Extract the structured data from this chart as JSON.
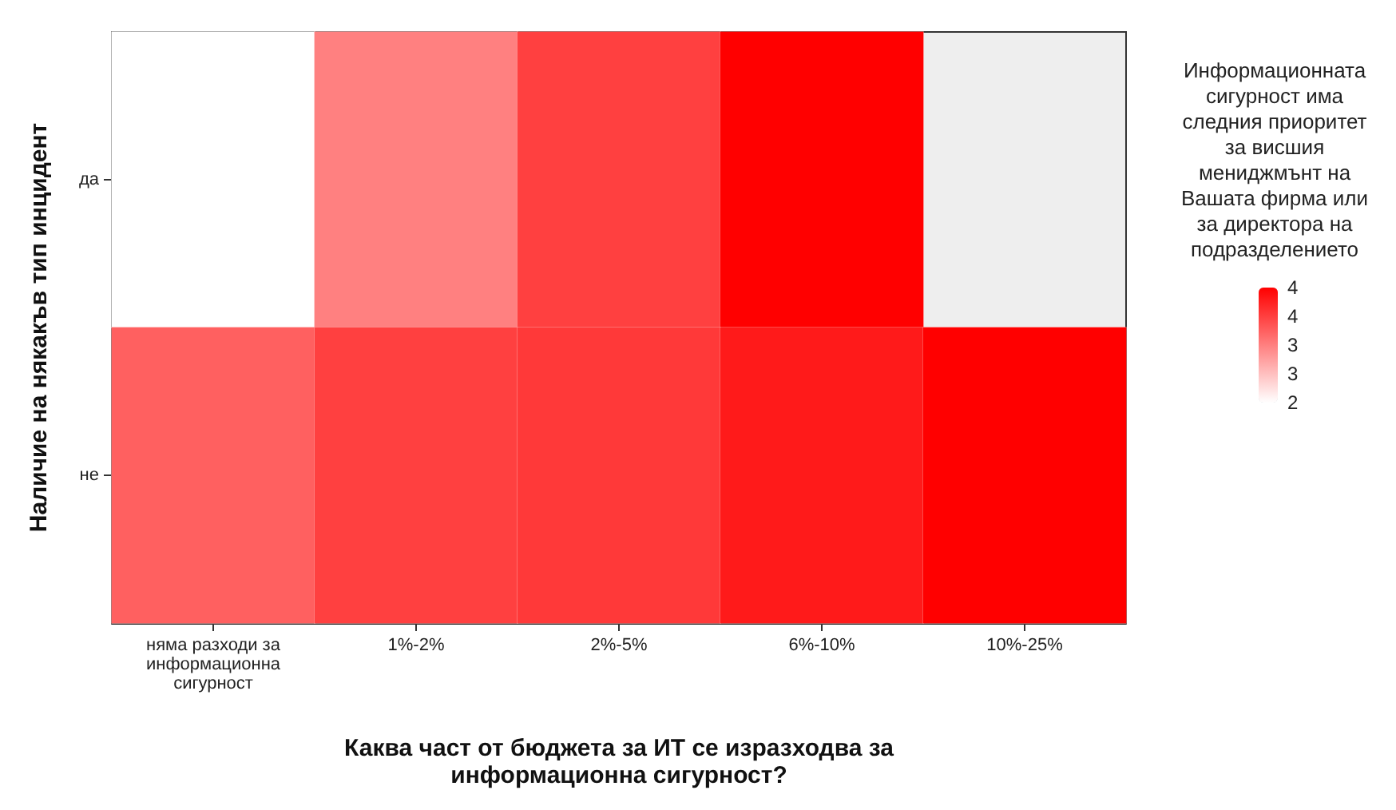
{
  "chart_data": {
    "type": "heatmap",
    "xlabel": "Каква част от бюджета за ИТ се изразходва за информационна сигурност?",
    "ylabel": "Наличие на някакъв тип инцидент",
    "clabel": "Информационната сигурност има следния приоритет за висшия мениджмънт на Вашата фирма или за директора на подразделението",
    "categories": [
      "няма разходи за информационна сигурност",
      "1%-2%",
      "2%-5%",
      "6%-10%",
      "10%-25%"
    ],
    "y_categories": [
      "да",
      "не"
    ],
    "cells": [
      [
        2.0,
        3.0,
        3.5,
        4.0,
        null
      ],
      [
        3.25,
        3.5,
        3.55,
        3.8,
        4.0
      ]
    ],
    "clim": [
      2,
      4
    ],
    "cticks": [
      4,
      {
        "value": 3.5,
        "label": "4"
      },
      3,
      {
        "value": 2.5,
        "label": "3"
      },
      2
    ]
  }
}
